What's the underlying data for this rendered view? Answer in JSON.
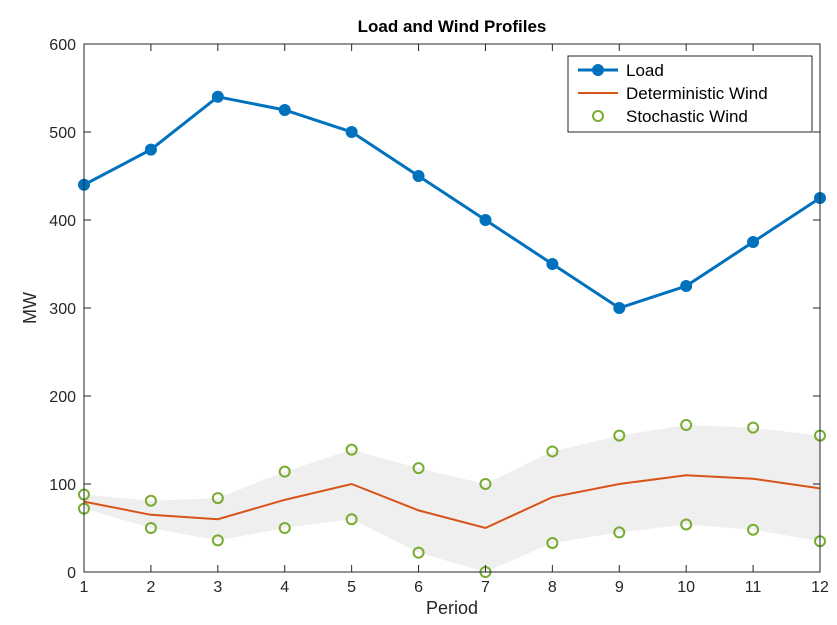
{
  "chart_data": {
    "type": "line",
    "title": "Load and Wind Profiles",
    "xlabel": "Period",
    "ylabel": "MW",
    "xlim": [
      1,
      12
    ],
    "ylim": [
      0,
      600
    ],
    "x": [
      1,
      2,
      3,
      4,
      5,
      6,
      7,
      8,
      9,
      10,
      11,
      12
    ],
    "xticks": [
      "1",
      "2",
      "3",
      "4",
      "5",
      "6",
      "7",
      "8",
      "9",
      "10",
      "11",
      "12"
    ],
    "yticks": [
      "0",
      "100",
      "200",
      "300",
      "400",
      "500",
      "600"
    ],
    "legend_position": "top-right",
    "series": [
      {
        "name": "Load",
        "style": "line-with-filled-markers",
        "color": "#0072BD",
        "values": [
          440,
          480,
          540,
          525,
          500,
          450,
          400,
          350,
          300,
          325,
          375,
          425
        ]
      },
      {
        "name": "Deterministic Wind",
        "style": "line",
        "color": "#D95319",
        "values": [
          80,
          65,
          60,
          82,
          100,
          70,
          50,
          85,
          100,
          110,
          106,
          95
        ]
      },
      {
        "name": "Stochastic Wind",
        "style": "open-markers",
        "color": "#77AC30",
        "points": [
          [
            1,
            88
          ],
          [
            1,
            72
          ],
          [
            2,
            81
          ],
          [
            2,
            50
          ],
          [
            3,
            84
          ],
          [
            3,
            36
          ],
          [
            4,
            114
          ],
          [
            4,
            50
          ],
          [
            5,
            139
          ],
          [
            5,
            60
          ],
          [
            6,
            118
          ],
          [
            6,
            22
          ],
          [
            7,
            100
          ],
          [
            7,
            0
          ],
          [
            8,
            137
          ],
          [
            8,
            33
          ],
          [
            9,
            155
          ],
          [
            9,
            45
          ],
          [
            10,
            167
          ],
          [
            10,
            54
          ],
          [
            11,
            164
          ],
          [
            11,
            48
          ],
          [
            12,
            155
          ],
          [
            12,
            35
          ]
        ]
      }
    ],
    "band": {
      "color": "#EFEFEF",
      "upper": [
        88,
        81,
        84,
        114,
        139,
        118,
        100,
        137,
        155,
        167,
        164,
        155
      ],
      "lower": [
        72,
        50,
        36,
        50,
        60,
        22,
        0,
        33,
        45,
        54,
        48,
        35
      ]
    }
  }
}
